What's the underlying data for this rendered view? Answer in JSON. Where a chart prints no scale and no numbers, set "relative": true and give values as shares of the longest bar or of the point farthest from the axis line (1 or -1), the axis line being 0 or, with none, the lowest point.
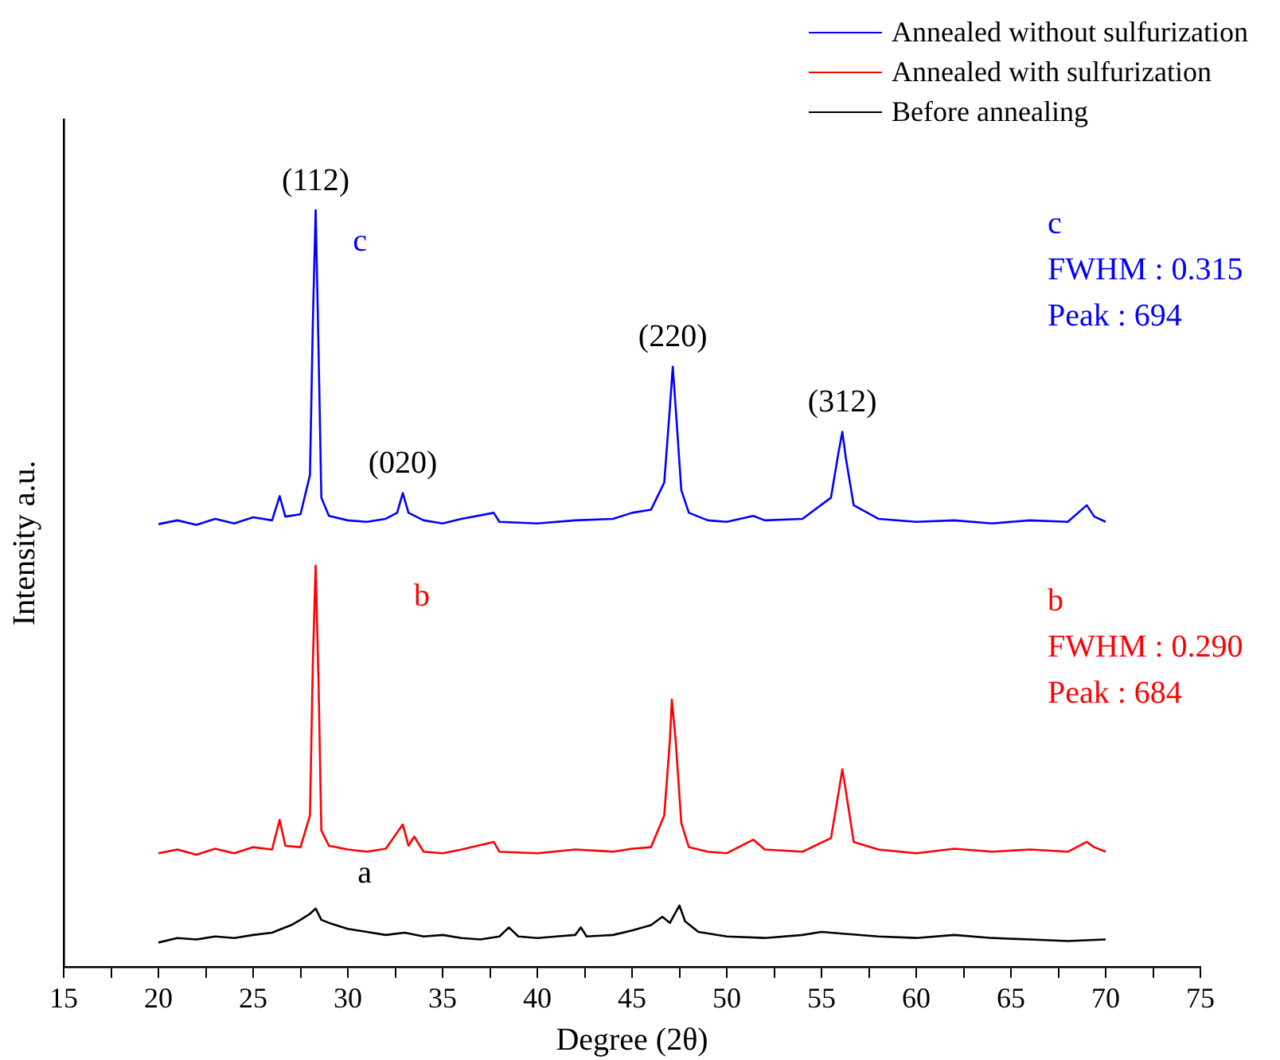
{
  "chart_data": {
    "type": "line",
    "relative": true,
    "xlabel": "Degree (2θ)",
    "ylabel": "Intensity a.u.",
    "legend": "top right",
    "marker": "none",
    "line_style": "solid",
    "grid": false,
    "xlim": [
      15,
      75
    ],
    "xticks": [
      15,
      {
        "value": 17.5,
        "label": null
      },
      20,
      {
        "value": 22.5,
        "label": null
      },
      25,
      {
        "value": 27.5,
        "label": null
      },
      30,
      {
        "value": 32.5,
        "label": null
      },
      35,
      {
        "value": 37.5,
        "label": null
      },
      40,
      {
        "value": 42.5,
        "label": null
      },
      45,
      {
        "value": 47.5,
        "label": null
      },
      50,
      {
        "value": 52.5,
        "label": null
      },
      55,
      {
        "value": 57.5,
        "label": null
      },
      60,
      {
        "value": 62.5,
        "label": null
      },
      65,
      {
        "value": 67.5,
        "label": null
      },
      70,
      {
        "value": 72.5,
        "label": null
      },
      75
    ],
    "series": [
      {
        "name": "Annealed without sulfurization",
        "color": "#0000ff",
        "x": [
          20,
          21,
          22,
          23,
          24,
          25,
          26,
          26.4,
          26.7,
          27.5,
          28.0,
          28.15,
          28.3,
          28.45,
          28.6,
          29,
          30,
          31,
          32,
          32.6,
          32.9,
          33.2,
          34,
          35,
          36,
          37.7,
          38,
          40,
          42,
          44,
          45,
          46,
          46.7,
          47.0,
          47.15,
          47.3,
          47.6,
          48,
          49,
          50,
          51.4,
          52,
          54,
          55.5,
          55.9,
          56.1,
          56.3,
          56.7,
          58,
          60,
          62,
          64,
          66,
          68,
          69,
          69.4,
          70
        ],
        "values": [
          0.585,
          0.59,
          0.584,
          0.592,
          0.586,
          0.594,
          0.59,
          0.622,
          0.595,
          0.598,
          0.65,
          0.85,
          1,
          0.82,
          0.62,
          0.596,
          0.59,
          0.588,
          0.592,
          0.6,
          0.626,
          0.6,
          0.59,
          0.586,
          0.592,
          0.6,
          0.588,
          0.586,
          0.59,
          0.592,
          0.6,
          0.604,
          0.64,
          0.74,
          0.793,
          0.74,
          0.63,
          0.6,
          0.59,
          0.588,
          0.596,
          0.59,
          0.592,
          0.62,
          0.68,
          0.707,
          0.67,
          0.61,
          0.592,
          0.588,
          0.59,
          0.586,
          0.59,
          0.588,
          0.61,
          0.595,
          0.588
        ]
      },
      {
        "name": "Annealed with sulfurization",
        "color": "#ff0000",
        "x": [
          20,
          21,
          22,
          23,
          24,
          25,
          26,
          26.4,
          26.7,
          27.5,
          28.0,
          28.15,
          28.3,
          28.45,
          28.6,
          29,
          30,
          31,
          32,
          32.9,
          33.2,
          33.5,
          34,
          35,
          36,
          37.7,
          38,
          40,
          42,
          44,
          45,
          46,
          46.7,
          47.0,
          47.1,
          47.3,
          47.6,
          48,
          49,
          50,
          51.4,
          52,
          54,
          55.5,
          55.9,
          56.1,
          56.3,
          56.7,
          58,
          60,
          62,
          64,
          66,
          68,
          69,
          69.4,
          70
        ],
        "values": [
          0.15,
          0.155,
          0.148,
          0.156,
          0.15,
          0.158,
          0.155,
          0.194,
          0.16,
          0.158,
          0.2,
          0.4,
          0.53,
          0.38,
          0.18,
          0.16,
          0.155,
          0.152,
          0.156,
          0.188,
          0.16,
          0.172,
          0.152,
          0.15,
          0.155,
          0.165,
          0.152,
          0.15,
          0.155,
          0.152,
          0.156,
          0.158,
          0.2,
          0.3,
          0.353,
          0.3,
          0.19,
          0.158,
          0.152,
          0.15,
          0.168,
          0.155,
          0.152,
          0.17,
          0.23,
          0.261,
          0.23,
          0.165,
          0.155,
          0.15,
          0.156,
          0.152,
          0.155,
          0.152,
          0.165,
          0.158,
          0.152
        ]
      },
      {
        "name": "Before annealing",
        "color": "#000000",
        "x": [
          20,
          21,
          22,
          23,
          24,
          25,
          26,
          27,
          27.5,
          28,
          28.3,
          28.6,
          29,
          30,
          31,
          32,
          33,
          34,
          35,
          36,
          37,
          38,
          38.5,
          39,
          40,
          41,
          42,
          42.3,
          42.6,
          44,
          45,
          46,
          46.6,
          47,
          47.5,
          47.8,
          48.5,
          50,
          52,
          54,
          55,
          56,
          58,
          60,
          62,
          64,
          66,
          68,
          70
        ],
        "values": [
          0.032,
          0.038,
          0.036,
          0.04,
          0.038,
          0.042,
          0.045,
          0.055,
          0.062,
          0.07,
          0.077,
          0.062,
          0.058,
          0.05,
          0.046,
          0.042,
          0.045,
          0.04,
          0.042,
          0.038,
          0.036,
          0.04,
          0.052,
          0.04,
          0.038,
          0.04,
          0.042,
          0.052,
          0.04,
          0.042,
          0.048,
          0.055,
          0.066,
          0.058,
          0.081,
          0.06,
          0.046,
          0.04,
          0.038,
          0.042,
          0.046,
          0.044,
          0.04,
          0.038,
          0.042,
          0.038,
          0.036,
          0.034,
          0.036
        ]
      }
    ],
    "annotations": [
      {
        "text": "(112)",
        "x": 28.3,
        "y": 1
      },
      {
        "text": "(020)",
        "x": 32.9,
        "y": 0.626
      },
      {
        "text": "(220)",
        "x": 47.15,
        "y": 0.793
      },
      {
        "text": "(312)",
        "x": 56.1,
        "y": 0.707
      },
      "c",
      "b",
      "a",
      "c",
      "FWHM : 0.315",
      "Peak : 694",
      "b",
      "FWHM : 0.290",
      "Peak : 684"
    ]
  }
}
